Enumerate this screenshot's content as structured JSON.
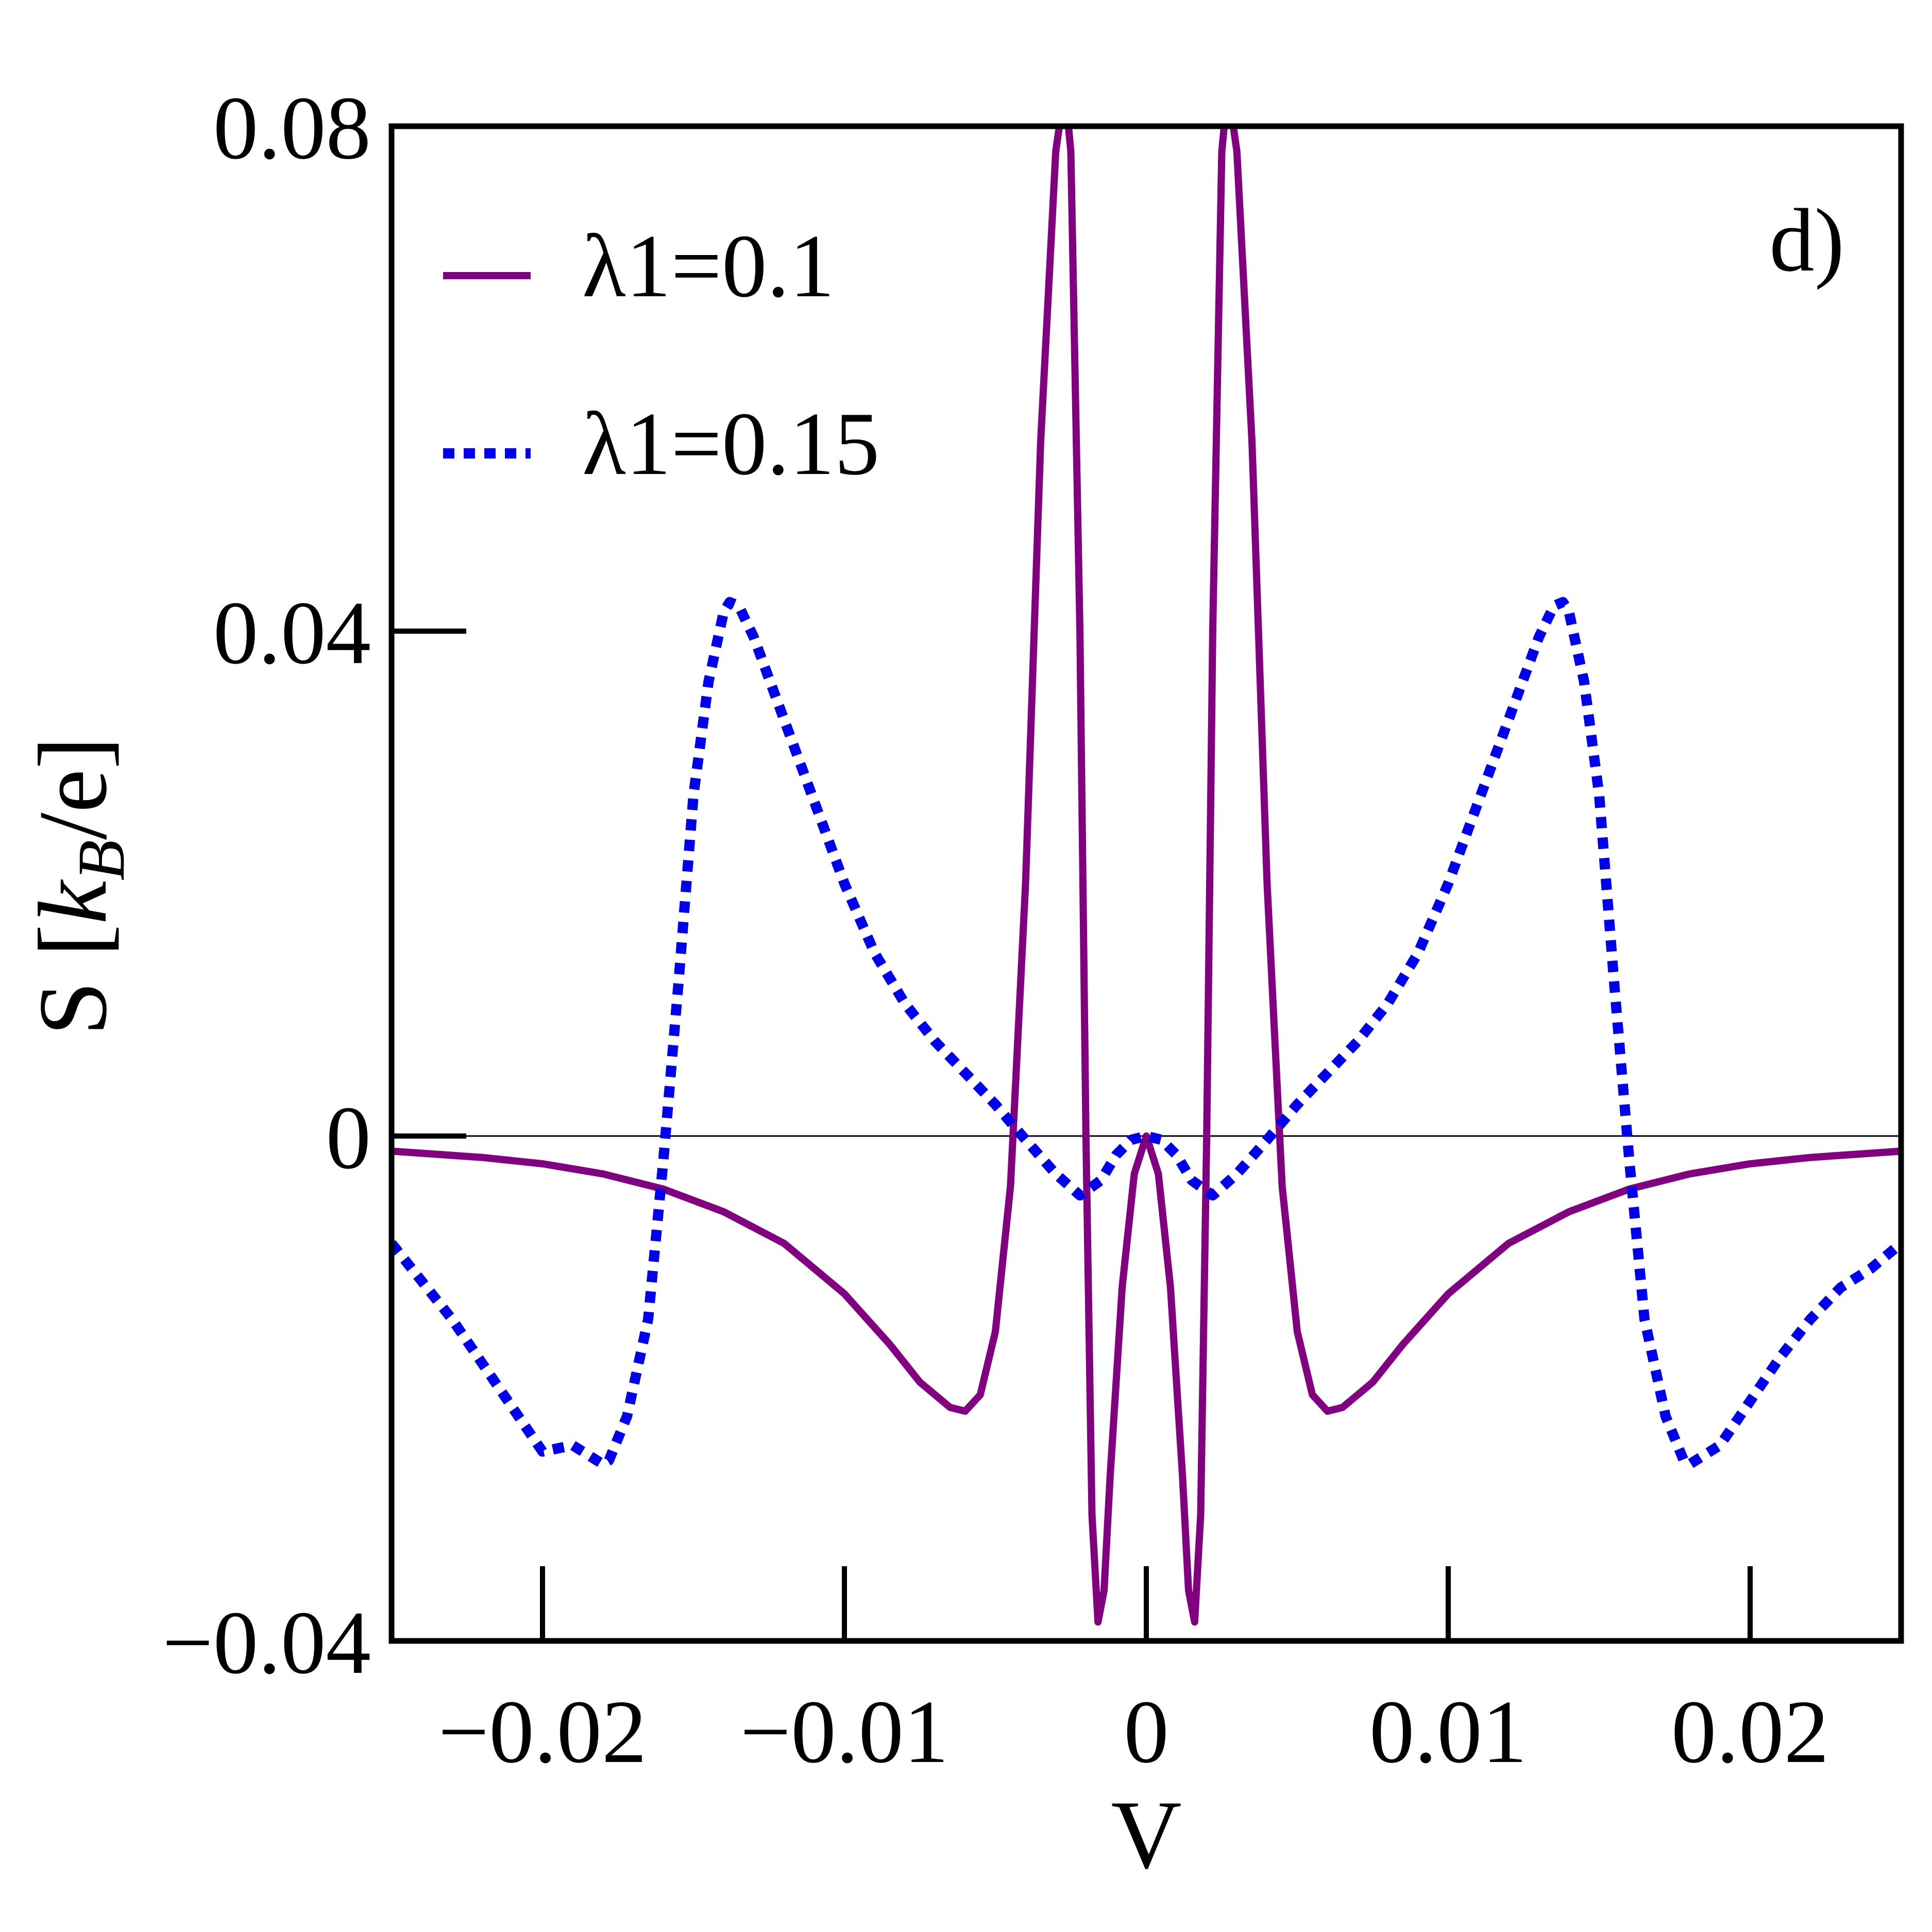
{
  "chart_data": {
    "type": "line",
    "title": "",
    "panel_label": "d)",
    "xlabel": "V",
    "ylabel": "S [k_B/e]",
    "ylabel_parts": {
      "main": "S [",
      "italic": "k",
      "sub": "B",
      "rest": "/e]"
    },
    "xlim": [
      -0.025,
      0.025
    ],
    "ylim": [
      -0.04,
      0.08
    ],
    "x_ticks": [
      -0.02,
      -0.01,
      0,
      0.01,
      0.02
    ],
    "x_tick_labels": [
      "−0.02",
      "−0.01",
      "0",
      "0.01",
      "0.02"
    ],
    "y_ticks": [
      -0.04,
      0,
      0.04,
      0.08
    ],
    "y_tick_labels": [
      "−0.04",
      "0",
      "0.04",
      "0.08"
    ],
    "grid": false,
    "zero_line": true,
    "legend_position": "top-left",
    "series": [
      {
        "name": "λ1=0.1",
        "color": "#800080",
        "style": "solid",
        "points": [
          [
            -0.025,
            -0.0012
          ],
          [
            -0.022,
            -0.0017
          ],
          [
            -0.02,
            -0.0022
          ],
          [
            -0.018,
            -0.003
          ],
          [
            -0.016,
            -0.0042
          ],
          [
            -0.014,
            -0.006
          ],
          [
            -0.012,
            -0.0085
          ],
          [
            -0.01,
            -0.0125
          ],
          [
            -0.0085,
            -0.0165
          ],
          [
            -0.0075,
            -0.0195
          ],
          [
            -0.0065,
            -0.0215
          ],
          [
            -0.006,
            -0.0218
          ],
          [
            -0.0055,
            -0.0205
          ],
          [
            -0.005,
            -0.0155
          ],
          [
            -0.0045,
            -0.004
          ],
          [
            -0.004,
            0.02
          ],
          [
            -0.0035,
            0.055
          ],
          [
            -0.003,
            0.078
          ],
          [
            -0.0027,
            0.083
          ],
          [
            -0.0025,
            0.078
          ],
          [
            -0.0022,
            0.04
          ],
          [
            -0.002,
            0.0
          ],
          [
            -0.0018,
            -0.03
          ],
          [
            -0.0016,
            -0.0385
          ],
          [
            -0.0014,
            -0.036
          ],
          [
            -0.0012,
            -0.027
          ],
          [
            -0.0008,
            -0.012
          ],
          [
            -0.0004,
            -0.003
          ],
          [
            0,
            0.0
          ],
          [
            0.0004,
            -0.003
          ],
          [
            0.0008,
            -0.012
          ],
          [
            0.0012,
            -0.027
          ],
          [
            0.0014,
            -0.036
          ],
          [
            0.0016,
            -0.0385
          ],
          [
            0.0018,
            -0.03
          ],
          [
            0.002,
            0.0
          ],
          [
            0.0022,
            0.04
          ],
          [
            0.0025,
            0.078
          ],
          [
            0.0027,
            0.083
          ],
          [
            0.003,
            0.078
          ],
          [
            0.0035,
            0.055
          ],
          [
            0.004,
            0.02
          ],
          [
            0.0045,
            -0.004
          ],
          [
            0.005,
            -0.0155
          ],
          [
            0.0055,
            -0.0205
          ],
          [
            0.006,
            -0.0218
          ],
          [
            0.0065,
            -0.0215
          ],
          [
            0.0075,
            -0.0195
          ],
          [
            0.0085,
            -0.0165
          ],
          [
            0.01,
            -0.0125
          ],
          [
            0.012,
            -0.0085
          ],
          [
            0.014,
            -0.006
          ],
          [
            0.016,
            -0.0042
          ],
          [
            0.018,
            -0.003
          ],
          [
            0.02,
            -0.0022
          ],
          [
            0.022,
            -0.0017
          ],
          [
            0.025,
            -0.0012
          ]
        ]
      },
      {
        "name": "λ1=0.15",
        "color": "#0000ee",
        "style": "dotted",
        "points": [
          [
            -0.025,
            -0.0085
          ],
          [
            -0.024,
            -0.0115
          ],
          [
            -0.023,
            -0.0145
          ],
          [
            -0.022,
            -0.018
          ],
          [
            -0.021,
            -0.0215
          ],
          [
            -0.02,
            -0.025
          ],
          [
            -0.019,
            -0.0245
          ],
          [
            -0.018,
            -0.026
          ],
          [
            -0.0178,
            -0.0257
          ],
          [
            -0.0172,
            -0.0222
          ],
          [
            -0.0165,
            -0.0145
          ],
          [
            -0.016,
            -0.002
          ],
          [
            -0.0155,
            0.012
          ],
          [
            -0.015,
            0.027
          ],
          [
            -0.0145,
            0.036
          ],
          [
            -0.014,
            0.0415
          ],
          [
            -0.0138,
            0.0423
          ],
          [
            -0.0135,
            0.042
          ],
          [
            -0.013,
            0.0395
          ],
          [
            -0.012,
            0.033
          ],
          [
            -0.011,
            0.0265
          ],
          [
            -0.01,
            0.02
          ],
          [
            -0.009,
            0.0145
          ],
          [
            -0.008,
            0.0105
          ],
          [
            -0.007,
            0.0075
          ],
          [
            -0.006,
            0.005
          ],
          [
            -0.005,
            0.0025
          ],
          [
            -0.004,
            -0.0003
          ],
          [
            -0.003,
            -0.003
          ],
          [
            -0.0022,
            -0.0047
          ],
          [
            -0.0015,
            -0.0035
          ],
          [
            -0.001,
            -0.0015
          ],
          [
            -0.0005,
            -0.0003
          ],
          [
            0,
            0.0
          ],
          [
            0.0005,
            -0.0003
          ],
          [
            0.001,
            -0.0015
          ],
          [
            0.0015,
            -0.0035
          ],
          [
            0.0022,
            -0.0047
          ],
          [
            0.003,
            -0.003
          ],
          [
            0.004,
            -0.0003
          ],
          [
            0.005,
            0.0025
          ],
          [
            0.006,
            0.005
          ],
          [
            0.007,
            0.0075
          ],
          [
            0.008,
            0.0105
          ],
          [
            0.009,
            0.0145
          ],
          [
            0.01,
            0.02
          ],
          [
            0.011,
            0.0265
          ],
          [
            0.012,
            0.033
          ],
          [
            0.013,
            0.0395
          ],
          [
            0.0135,
            0.042
          ],
          [
            0.0138,
            0.0423
          ],
          [
            0.014,
            0.0415
          ],
          [
            0.0145,
            0.036
          ],
          [
            0.015,
            0.027
          ],
          [
            0.0155,
            0.012
          ],
          [
            0.016,
            -0.002
          ],
          [
            0.0165,
            -0.0145
          ],
          [
            0.0172,
            -0.0222
          ],
          [
            0.0178,
            -0.0257
          ],
          [
            0.018,
            -0.026
          ],
          [
            0.019,
            -0.0245
          ],
          [
            0.02,
            -0.021
          ],
          [
            0.021,
            -0.0175
          ],
          [
            0.022,
            -0.0145
          ],
          [
            0.023,
            -0.012
          ],
          [
            0.024,
            -0.0105
          ],
          [
            0.025,
            -0.0085
          ]
        ]
      }
    ]
  }
}
